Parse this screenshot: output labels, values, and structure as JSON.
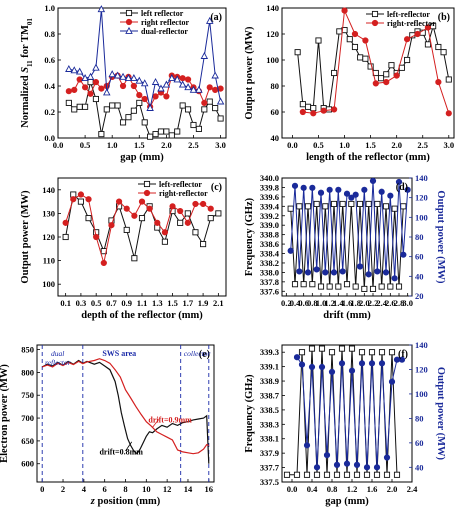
{
  "chart_data": [
    {
      "id": "a",
      "type": "line",
      "panel_label": "(a)",
      "xlabel": "gap (mm)",
      "ylabel": "Normalized S11 for TM01",
      "ylabel_parts": [
        "Normalized ",
        "S",
        "11",
        " for TM",
        "01"
      ],
      "xlim": [
        0,
        3.1
      ],
      "ylim": [
        0,
        1.0
      ],
      "xticks": [
        0.0,
        0.5,
        1.0,
        1.5,
        2.0,
        2.5,
        3.0
      ],
      "yticks": [
        0.0,
        0.2,
        0.4,
        0.6,
        0.8,
        1.0
      ],
      "xtick_decimals": 1,
      "ytick_decimals": 1,
      "legend": "top-right",
      "series": [
        {
          "name": "left reflector",
          "color": "#111111",
          "marker": "square-open",
          "x": [
            0.2,
            0.3,
            0.4,
            0.5,
            0.6,
            0.7,
            0.8,
            0.9,
            1.0,
            1.1,
            1.2,
            1.3,
            1.4,
            1.5,
            1.6,
            1.7,
            1.8,
            1.9,
            2.0,
            2.1,
            2.2,
            2.3,
            2.4,
            2.5,
            2.6,
            2.7,
            2.8,
            2.9,
            3.0
          ],
          "y": [
            0.27,
            0.22,
            0.24,
            0.24,
            0.43,
            0.3,
            0.03,
            0.22,
            0.25,
            0.25,
            0.12,
            0.16,
            0.21,
            0.27,
            0.12,
            0.01,
            0.03,
            0.05,
            0.05,
            0.02,
            0.05,
            0.25,
            0.22,
            0.1,
            0.07,
            0.22,
            0.28,
            0.23,
            0.15
          ]
        },
        {
          "name": "right reflector",
          "color": "#d42020",
          "marker": "circle-filled",
          "x": [
            0.2,
            0.3,
            0.4,
            0.5,
            0.6,
            0.7,
            0.8,
            0.9,
            1.0,
            1.1,
            1.2,
            1.3,
            1.4,
            1.5,
            1.6,
            1.7,
            1.8,
            1.9,
            2.0,
            2.1,
            2.2,
            2.3,
            2.4,
            2.5,
            2.6,
            2.7,
            2.8,
            2.9,
            3.0
          ],
          "y": [
            0.36,
            0.37,
            0.45,
            0.39,
            0.34,
            0.43,
            0.38,
            0.4,
            0.47,
            0.48,
            0.4,
            0.47,
            0.4,
            0.33,
            0.3,
            0.24,
            0.32,
            0.35,
            0.32,
            0.48,
            0.47,
            0.46,
            0.45,
            0.39,
            0.36,
            0.27,
            0.39,
            0.37,
            0.38
          ]
        },
        {
          "name": "dual-reflector",
          "color": "#1a2a9a",
          "marker": "triangle-open",
          "x": [
            0.2,
            0.3,
            0.4,
            0.5,
            0.6,
            0.7,
            0.8,
            0.9,
            1.0,
            1.1,
            1.2,
            1.3,
            1.4,
            1.5,
            1.6,
            1.7,
            1.8,
            1.9,
            2.0,
            2.1,
            2.2,
            2.3,
            2.4,
            2.5,
            2.6,
            2.7,
            2.8,
            2.9,
            3.0
          ],
          "y": [
            0.53,
            0.52,
            0.51,
            0.46,
            0.47,
            0.54,
            0.99,
            0.35,
            0.49,
            0.48,
            0.47,
            0.46,
            0.46,
            0.44,
            0.42,
            0.23,
            0.43,
            0.38,
            0.41,
            0.46,
            0.45,
            0.41,
            0.39,
            0.37,
            0.37,
            0.63,
            0.9,
            0.48,
            0.28
          ]
        }
      ]
    },
    {
      "id": "b",
      "type": "line",
      "panel_label": "(b)",
      "xlabel": "length of the reflector (mm)",
      "ylabel": "Output power (MW)",
      "xlim": [
        -0.2,
        3.1
      ],
      "ylim": [
        40,
        140
      ],
      "xticks": [
        0.0,
        0.5,
        1.0,
        1.5,
        2.0,
        2.5,
        3.0
      ],
      "yticks": [
        40,
        60,
        80,
        100,
        120,
        140
      ],
      "xtick_decimals": 1,
      "ytick_decimals": 0,
      "legend": "top-right",
      "series": [
        {
          "name": "left-reflector",
          "color": "#111111",
          "marker": "square-open",
          "x": [
            0.1,
            0.2,
            0.3,
            0.4,
            0.5,
            0.6,
            0.7,
            0.8,
            0.9,
            1.0,
            1.1,
            1.2,
            1.3,
            1.4,
            1.5,
            1.6,
            1.7,
            1.8,
            1.9,
            2.0,
            2.1,
            2.2,
            2.3,
            2.4,
            2.5,
            2.6,
            2.7,
            2.8,
            2.9,
            3.0
          ],
          "y": [
            106,
            66,
            64,
            63,
            115,
            63,
            62,
            90,
            122,
            123,
            116,
            110,
            102,
            101,
            95,
            90,
            86,
            89,
            96,
            90,
            94,
            100,
            119,
            122,
            121,
            112,
            126,
            110,
            106,
            85
          ]
        },
        {
          "name": "right-reflector",
          "color": "#d42020",
          "marker": "circle-filled",
          "x": [
            0.2,
            0.4,
            0.6,
            0.8,
            1.0,
            1.2,
            1.4,
            1.6,
            1.8,
            2.0,
            2.2,
            2.4,
            2.6,
            2.8,
            3.0
          ],
          "y": [
            60,
            59,
            61,
            62,
            138,
            120,
            115,
            82,
            83,
            88,
            116,
            120,
            125,
            83,
            59
          ]
        }
      ]
    },
    {
      "id": "c",
      "type": "line",
      "panel_label": "(c)",
      "xlabel": "depth of the reflector (mm)",
      "ylabel": "Output power (MW)",
      "xlim": [
        0.0,
        2.2
      ],
      "ylim": [
        95,
        145
      ],
      "xticks": [
        0.1,
        0.3,
        0.5,
        0.7,
        0.9,
        1.1,
        1.3,
        1.5,
        1.7,
        1.9,
        2.1
      ],
      "yticks": [
        100,
        110,
        120,
        130,
        140
      ],
      "xtick_decimals": 1,
      "ytick_decimals": 0,
      "legend": "top-right",
      "series": [
        {
          "name": "left-reflector",
          "color": "#111111",
          "marker": "square-open",
          "x": [
            0.1,
            0.2,
            0.3,
            0.4,
            0.5,
            0.6,
            0.7,
            0.8,
            0.9,
            1.0,
            1.1,
            1.2,
            1.3,
            1.4,
            1.5,
            1.6,
            1.7,
            1.8,
            1.9,
            2.0,
            2.1
          ],
          "y": [
            120,
            138,
            135,
            128,
            122,
            114,
            127,
            133,
            123,
            111,
            128,
            133,
            124,
            118,
            131,
            126,
            130,
            122,
            117,
            128,
            130
          ]
        },
        {
          "name": "right-reflector",
          "color": "#d42020",
          "marker": "circle-filled",
          "x": [
            0.1,
            0.2,
            0.3,
            0.4,
            0.5,
            0.6,
            0.7,
            0.8,
            0.9,
            1.0,
            1.1,
            1.2,
            1.3,
            1.4,
            1.5,
            1.6,
            1.7,
            1.8,
            1.9,
            2.0
          ],
          "y": [
            126,
            136,
            138,
            136,
            120,
            109,
            125,
            135,
            132,
            129,
            135,
            132,
            126,
            122,
            133,
            131,
            126,
            134,
            134,
            132
          ]
        }
      ]
    },
    {
      "id": "d",
      "type": "line",
      "panel_label": "(d)",
      "xlabel": "drift (mm)",
      "ylabel": "Frequency (GHz)",
      "y2label": "Output power (MW)",
      "xlim": [
        0.1,
        3.1
      ],
      "ylim": [
        337.5,
        340.0
      ],
      "y2lim": [
        20,
        140
      ],
      "xticks": [
        0.2,
        0.4,
        0.6,
        0.8,
        1.0,
        1.2,
        1.4,
        1.6,
        1.8,
        2.0,
        2.2,
        2.4,
        2.6,
        2.8,
        3.0
      ],
      "yticks": [
        337.6,
        337.8,
        338.0,
        338.2,
        338.4,
        338.6,
        338.8,
        339.0,
        339.2,
        339.4,
        339.6,
        339.8,
        340.0
      ],
      "y2ticks": [
        20,
        40,
        60,
        80,
        100,
        120,
        140
      ],
      "xtick_decimals": 1,
      "ytick_decimals": 1,
      "y2tick_decimals": 0,
      "series": [
        {
          "name": "frequency",
          "axis": "left",
          "color": "#111111",
          "marker": "square-open",
          "x": [
            0.3,
            0.4,
            0.5,
            0.6,
            0.7,
            0.8,
            0.9,
            1.0,
            1.1,
            1.2,
            1.3,
            1.4,
            1.5,
            1.6,
            1.7,
            1.8,
            1.9,
            2.0,
            2.1,
            2.2,
            2.3,
            2.4,
            2.5,
            2.6,
            2.7,
            2.8,
            2.9
          ],
          "y": [
            339.35,
            337.75,
            339.4,
            337.75,
            339.4,
            337.75,
            339.45,
            337.7,
            339.4,
            337.7,
            339.45,
            337.7,
            339.45,
            337.75,
            339.45,
            337.7,
            339.45,
            337.65,
            339.45,
            337.65,
            339.45,
            337.7,
            339.4,
            337.7,
            339.35,
            337.7,
            339.4
          ]
        },
        {
          "name": "output power",
          "axis": "right",
          "color": "#1a2a9a",
          "marker": "circle-filled",
          "x": [
            0.3,
            0.4,
            0.5,
            0.6,
            0.7,
            0.8,
            0.9,
            1.0,
            1.1,
            1.2,
            1.3,
            1.4,
            1.5,
            1.6,
            1.7,
            1.8,
            1.9,
            2.0,
            2.1,
            2.2,
            2.3,
            2.4,
            2.5,
            2.6,
            2.7,
            2.8,
            2.9,
            3.0
          ],
          "y": [
            66,
            132,
            45,
            130,
            44,
            130,
            47,
            125,
            44,
            128,
            44,
            128,
            45,
            124,
            120,
            123,
            50,
            128,
            42,
            137,
            45,
            126,
            44,
            122,
            38,
            136,
            62,
            128
          ]
        }
      ]
    },
    {
      "id": "e",
      "type": "line",
      "panel_label": "(e)",
      "xlabel": "z position (mm)",
      "xlabel_parts": [
        "z",
        " position (mm)"
      ],
      "ylabel": "Electron power (MW)",
      "xlim": [
        -0.5,
        16.5
      ],
      "ylim": [
        560,
        860
      ],
      "xticks": [
        0,
        2,
        4,
        6,
        8,
        10,
        12,
        14,
        16
      ],
      "yticks": [
        600,
        650,
        700,
        750,
        800,
        850
      ],
      "xtick_decimals": 0,
      "ytick_decimals": 0,
      "vlines": [
        0.0,
        3.9,
        13.3,
        16.0
      ],
      "annotations": {
        "dual_reflector": [
          "dual",
          "reflector"
        ],
        "sws_area": "SWS area",
        "collector": "collector",
        "drift_09": "drift=0.9mm",
        "drift_08": "drift=0.8mm"
      },
      "series": [
        {
          "name": "drift=0.8mm",
          "color": "#111111",
          "x": [
            0,
            0.5,
            1,
            1.5,
            2,
            2.5,
            3,
            3.5,
            3.9,
            4.3,
            5,
            5.5,
            6,
            6.5,
            7,
            7.3,
            7.6,
            7.9,
            8.2,
            8.5,
            8.8,
            9.1,
            9.4,
            9.7,
            10,
            10.3,
            10.6,
            11,
            11.5,
            12,
            12.5,
            13,
            13.5,
            14,
            14.5,
            15,
            15.5,
            15.8,
            16
          ],
          "y": [
            812,
            818,
            814,
            822,
            816,
            824,
            818,
            826,
            820,
            824,
            818,
            822,
            814,
            806,
            780,
            750,
            712,
            682,
            655,
            640,
            628,
            622,
            632,
            646,
            660,
            670,
            668,
            676,
            684,
            680,
            688,
            684,
            690,
            692,
            696,
            698,
            700,
            705,
            600
          ]
        },
        {
          "name": "drift=0.9mm",
          "color": "#d42020",
          "x": [
            0,
            0.5,
            1,
            1.5,
            2,
            2.5,
            3,
            3.5,
            3.9,
            4.3,
            5,
            5.5,
            6,
            6.5,
            7,
            7.5,
            8,
            8.5,
            9,
            9.5,
            10,
            10.5,
            11,
            11.5,
            12,
            12.5,
            13,
            13.5,
            14,
            14.5,
            15,
            15.5,
            15.8,
            16
          ],
          "y": [
            812,
            816,
            812,
            820,
            815,
            822,
            817,
            824,
            819,
            823,
            826,
            830,
            826,
            820,
            806,
            790,
            762,
            744,
            725,
            708,
            692,
            682,
            670,
            664,
            658,
            652,
            630,
            626,
            624,
            622,
            624,
            632,
            642,
            640
          ]
        }
      ]
    },
    {
      "id": "f",
      "type": "line",
      "panel_label": "(f)",
      "xlabel": "gap (mm)",
      "ylabel": "Frequency (GHz)",
      "y2label": "Output power (MW)",
      "xlim": [
        -0.2,
        2.4
      ],
      "ylim": [
        337.5,
        339.4
      ],
      "y2lim": [
        28,
        140
      ],
      "xticks": [
        0.0,
        0.4,
        0.8,
        1.2,
        1.6,
        2.0,
        2.4
      ],
      "yticks": [
        337.5,
        337.7,
        337.9,
        338.1,
        338.3,
        338.5,
        338.7,
        338.9,
        339.1,
        339.3
      ],
      "y2ticks": [
        40,
        60,
        80,
        100,
        120,
        140
      ],
      "xtick_decimals": 1,
      "ytick_decimals": 1,
      "y2tick_decimals": 0,
      "series": [
        {
          "name": "frequency",
          "axis": "left",
          "color": "#111111",
          "marker": "square-open",
          "x": [
            -0.1,
            0.1,
            0.2,
            0.3,
            0.4,
            0.5,
            0.6,
            0.7,
            0.8,
            0.9,
            1.0,
            1.1,
            1.2,
            1.3,
            1.4,
            1.5,
            1.6,
            1.7,
            1.8,
            1.9,
            2.0,
            2.1
          ],
          "y": [
            337.6,
            337.6,
            339.3,
            337.6,
            339.35,
            337.6,
            339.35,
            337.6,
            339.3,
            337.6,
            339.35,
            337.6,
            339.35,
            337.6,
            339.3,
            337.6,
            339.3,
            337.6,
            339.3,
            337.6,
            339.3,
            337.6
          ]
        },
        {
          "name": "output power",
          "axis": "right",
          "color": "#1a2a9a",
          "marker": "circle-filled",
          "x": [
            0.1,
            0.2,
            0.3,
            0.4,
            0.5,
            0.6,
            0.7,
            0.8,
            0.9,
            1.0,
            1.1,
            1.2,
            1.3,
            1.4,
            1.5,
            1.6,
            1.7,
            1.8,
            1.9,
            2.0,
            2.1,
            2.2
          ],
          "y": [
            130,
            124,
            58,
            122,
            40,
            122,
            50,
            118,
            42,
            125,
            43,
            119,
            42,
            125,
            40,
            125,
            40,
            125,
            48,
            110,
            128,
            128
          ]
        }
      ]
    }
  ]
}
